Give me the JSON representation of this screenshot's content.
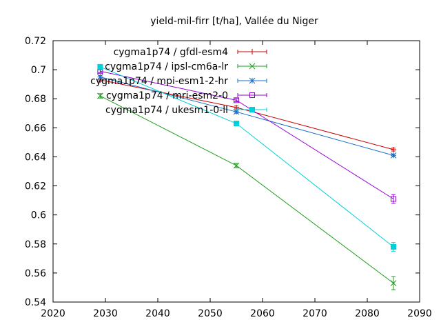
{
  "chart_data": {
    "type": "line",
    "title": "yield-mil-firr [t/ha], Vallée du Niger",
    "xlabel": "",
    "ylabel": "",
    "xlim": [
      2020,
      2090
    ],
    "ylim": [
      0.54,
      0.72
    ],
    "x_ticks": [
      "2020",
      "2030",
      "2040",
      "2050",
      "2060",
      "2070",
      "2080",
      "2090"
    ],
    "y_ticks": [
      "0.54",
      "0.56",
      "0.58",
      "0.6",
      "0.62",
      "0.64",
      "0.66",
      "0.68",
      "0.7",
      "0.72"
    ],
    "grid": false,
    "legend_position": "top-right (inside)",
    "x": [
      2029,
      2055,
      2085
    ],
    "series": [
      {
        "name": "cygma1p74 / gfdl-esm4",
        "color": "#cc0000",
        "marker": "plus",
        "values": [
          0.693,
          0.674,
          0.645
        ],
        "errors": [
          0.001,
          0.001,
          0.001
        ]
      },
      {
        "name": "cygma1p74 / ipsl-cm6a-lr",
        "color": "#1a9e1a",
        "marker": "cross",
        "values": [
          0.682,
          0.634,
          0.553
        ],
        "errors": [
          0.0015,
          0.0015,
          0.0045
        ]
      },
      {
        "name": "cygma1p74 / mpi-esm1-2-hr",
        "color": "#1a6ec8",
        "marker": "asterisk",
        "values": [
          0.695,
          0.671,
          0.641
        ],
        "errors": [
          0.001,
          0.001,
          0.001
        ]
      },
      {
        "name": "cygma1p74 / mri-esm2-0",
        "color": "#9400d3",
        "marker": "open-square",
        "values": [
          0.699,
          0.679,
          0.611
        ],
        "errors": [
          0.001,
          0.001,
          0.003
        ]
      },
      {
        "name": "cygma1p74 / ukesm1-0-ll",
        "color": "#00d0d8",
        "marker": "filled-square",
        "values": [
          0.702,
          0.663,
          0.578
        ],
        "errors": [
          0.001,
          0.0015,
          0.003
        ]
      }
    ]
  }
}
